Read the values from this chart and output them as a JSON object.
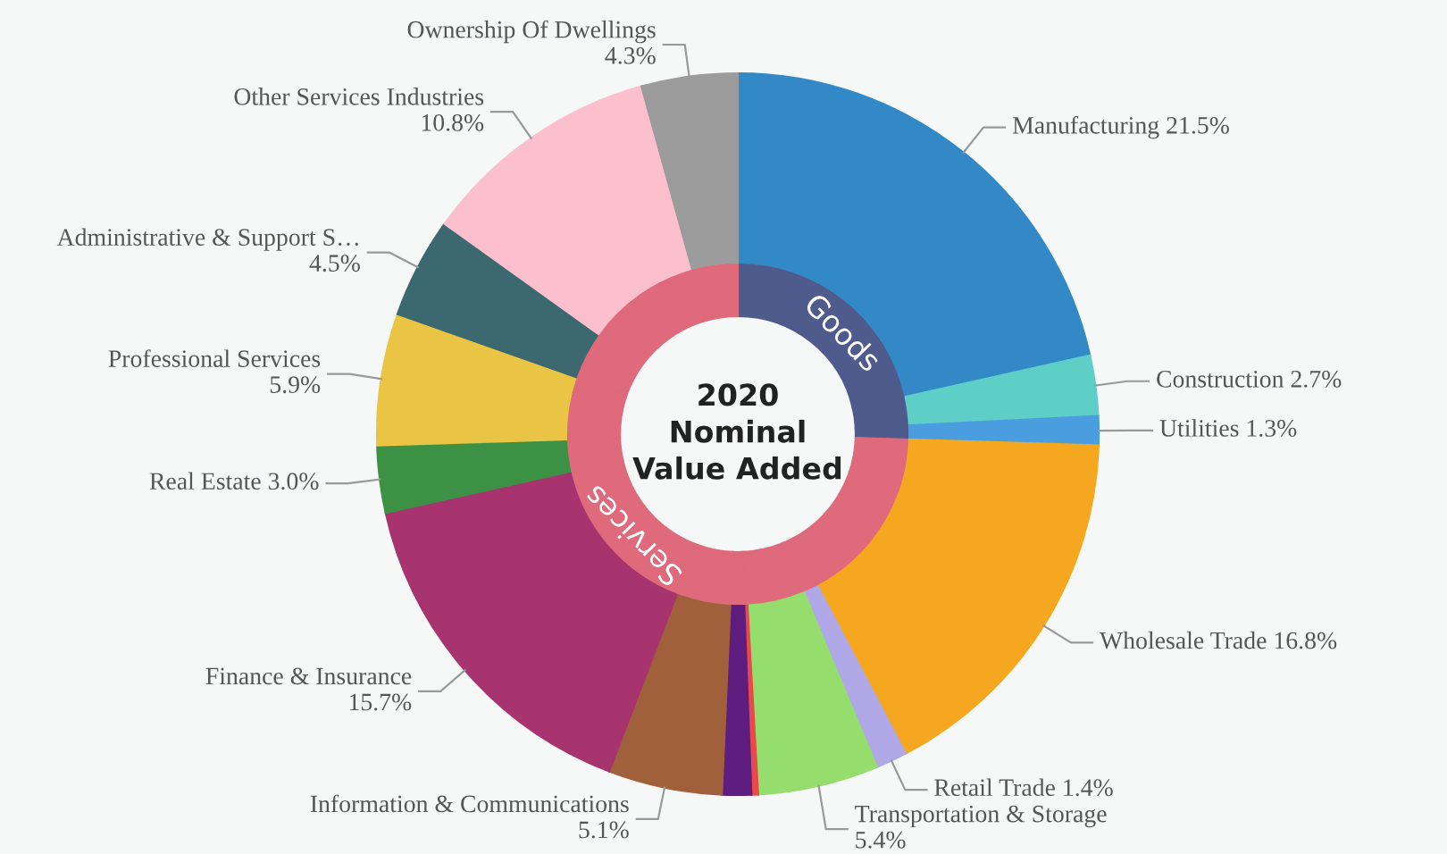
{
  "chart_data": {
    "type": "donut",
    "title": "2020\nNominal\nValue Added",
    "categories": [
      "Manufacturing",
      "Construction",
      "Utilities",
      "Wholesale Trade",
      "Retail Trade",
      "Transportation & Storage",
      null,
      null,
      "Information & Communications",
      "Finance & Insurance",
      "Real Estate",
      "Professional Services",
      "Administrative & Support S…",
      "Other Services Industries",
      "Ownership Of Dwellings"
    ],
    "annotations": [
      "Goods",
      "Services"
    ],
    "series": [
      {
        "values": [
          21.5,
          2.7,
          1.3,
          16.8,
          1.4,
          5.4,
          0.3,
          1.3,
          5.1,
          15.7,
          3.0,
          5.9,
          4.5,
          10.8,
          4.3
        ],
        "value_labels": [
          "21.5%",
          "2.7%",
          "1.3%",
          "16.8%",
          "1.4%",
          "5.4%",
          null,
          null,
          "5.1%",
          "15.7%",
          "3.0%",
          "5.9%",
          "4.5%",
          "10.8%",
          "4.3%"
        ],
        "colors": [
          "#3389c6",
          "#5ecfc7",
          "#4a9ee0",
          "#f5a81f",
          "#b0a8e6",
          "#95de6e",
          "#e8494a",
          "#5e1d7f",
          "#a0603b",
          "#a8346f",
          "#3d9144",
          "#eac545",
          "#3c6870",
          "#fbbfcd",
          "#9c9c9c"
        ]
      },
      {
        "values": [
          21.5,
          2.7,
          1.3,
          16.8,
          1.4,
          5.4,
          0.3,
          1.3,
          5.1,
          15.7,
          3.0,
          5.9,
          4.5,
          10.8,
          4.3
        ],
        "colors": [
          "#4f5b8c",
          "#4f5b8c",
          "#4f5b8c",
          "#de6a7b",
          "#de6a7b",
          "#de6a7b",
          "#de6a7b",
          "#de6a7b",
          "#de6a7b",
          "#de6a7b",
          "#de6a7b",
          "#de6a7b",
          "#de6a7b",
          "#de6a7b",
          "#de6a7b"
        ]
      }
    ]
  }
}
